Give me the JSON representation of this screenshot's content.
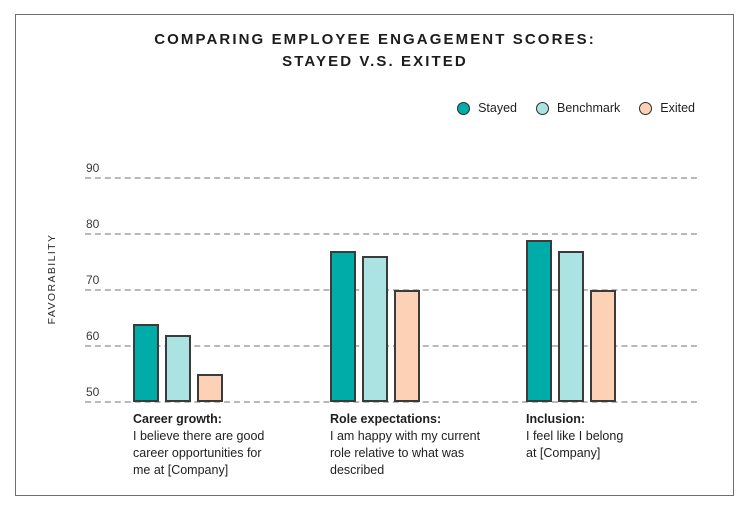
{
  "title": {
    "line1": "COMPARING EMPLOYEE ENGAGEMENT SCORES:",
    "line2": "STAYED V.S. EXITED"
  },
  "legend": {
    "items": [
      {
        "label": "Stayed",
        "color": "#00ACA8"
      },
      {
        "label": "Benchmark",
        "color": "#ABE3E2"
      },
      {
        "label": "Exited",
        "color": "#FCD1B5"
      }
    ]
  },
  "y_axis": {
    "label": "FAVORABILITY"
  },
  "categories": [
    {
      "heading": "Career growth:",
      "description": "I believe there are good\ncareer opportunities for\nme at [Company]"
    },
    {
      "heading": "Role expectations:",
      "description": "I am happy with my current\nrole relative to what was\ndescribed"
    },
    {
      "heading": "Inclusion:",
      "description": "I feel like I belong\nat [Company]"
    }
  ],
  "chart_data": {
    "type": "bar",
    "title": "COMPARING EMPLOYEE ENGAGEMENT SCORES: STAYED V.S. EXITED",
    "xlabel": "",
    "ylabel": "FAVORABILITY",
    "ylim": [
      50,
      95
    ],
    "yticks": [
      50,
      60,
      70,
      80,
      90
    ],
    "grid": "horizontal-dashed",
    "legend_position": "top-right",
    "baseline": 50,
    "categories": [
      "Career growth: I believe there are good career opportunities for me at [Company]",
      "Role expectations: I am happy with my current role relative to what was described",
      "Inclusion: I feel like I belong at [Company]"
    ],
    "series": [
      {
        "name": "Stayed",
        "color": "#00ACA8",
        "values": [
          64,
          77,
          79
        ]
      },
      {
        "name": "Benchmark",
        "color": "#ABE3E2",
        "values": [
          62,
          76,
          77
        ]
      },
      {
        "name": "Exited",
        "color": "#FCD1B5",
        "values": [
          55,
          70,
          70
        ]
      }
    ]
  },
  "style": {
    "bar_border": "#3B3B3B",
    "gridline": "#B9B9B9",
    "frame_border": "#6F6F6F",
    "text": "#1F1F1F",
    "tick_color": "#3A3A3A"
  }
}
